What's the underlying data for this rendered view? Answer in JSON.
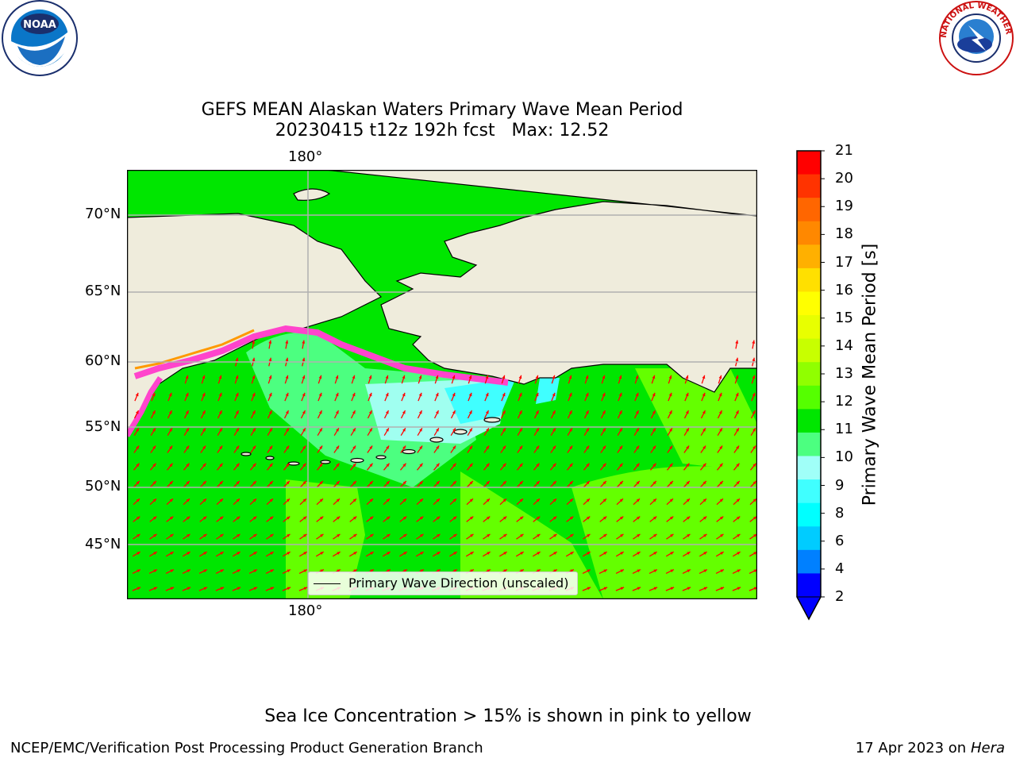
{
  "title": "GEFS MEAN Alaskan Waters Primary Wave Mean Period",
  "subtitle": "20230415 t12z 192h fcst   Max: 12.52",
  "map": {
    "lon_label_top": "180°",
    "lon_label_bottom": "180°",
    "lat_labels": [
      "70°N",
      "65°N",
      "60°N",
      "55°N",
      "50°N",
      "45°N"
    ],
    "legend_label": "Primary Wave Direction (unscaled)",
    "colors": {
      "land": "#efecdc",
      "ocean_11": "#00e600",
      "ocean_12": "#64ff00",
      "ocean_9": "#4cff80",
      "ocean_8": "#a0fff0",
      "ice": "#ff44cc",
      "arrow": "#ff0000"
    }
  },
  "colorbar": {
    "title": "Primary Wave Mean Period [s]",
    "ticks": [
      "21",
      "20",
      "19",
      "18",
      "17",
      "16",
      "15",
      "14",
      "13",
      "12",
      "11",
      "10",
      "9",
      "8",
      "6",
      "4",
      "2"
    ],
    "colors": [
      "#ff0000",
      "#ff3300",
      "#ff6600",
      "#ff8800",
      "#ffb000",
      "#ffe000",
      "#ffff00",
      "#e8ff00",
      "#c8ff00",
      "#90ff00",
      "#55ff00",
      "#00e600",
      "#4cff80",
      "#a0fff8",
      "#40ffff",
      "#00ffff",
      "#00ccff",
      "#0080ff",
      "#0000ff"
    ]
  },
  "caption": "Sea Ice Concentration > 15% is shown in pink to yellow",
  "footer": {
    "left": "NCEP/EMC/Verification Post Processing Product Generation Branch",
    "date": "17 Apr 2023 on ",
    "host": "Hera"
  },
  "logos": {
    "noaa": "NOAA",
    "nws": "NATIONAL WEATHER SERVICE"
  }
}
